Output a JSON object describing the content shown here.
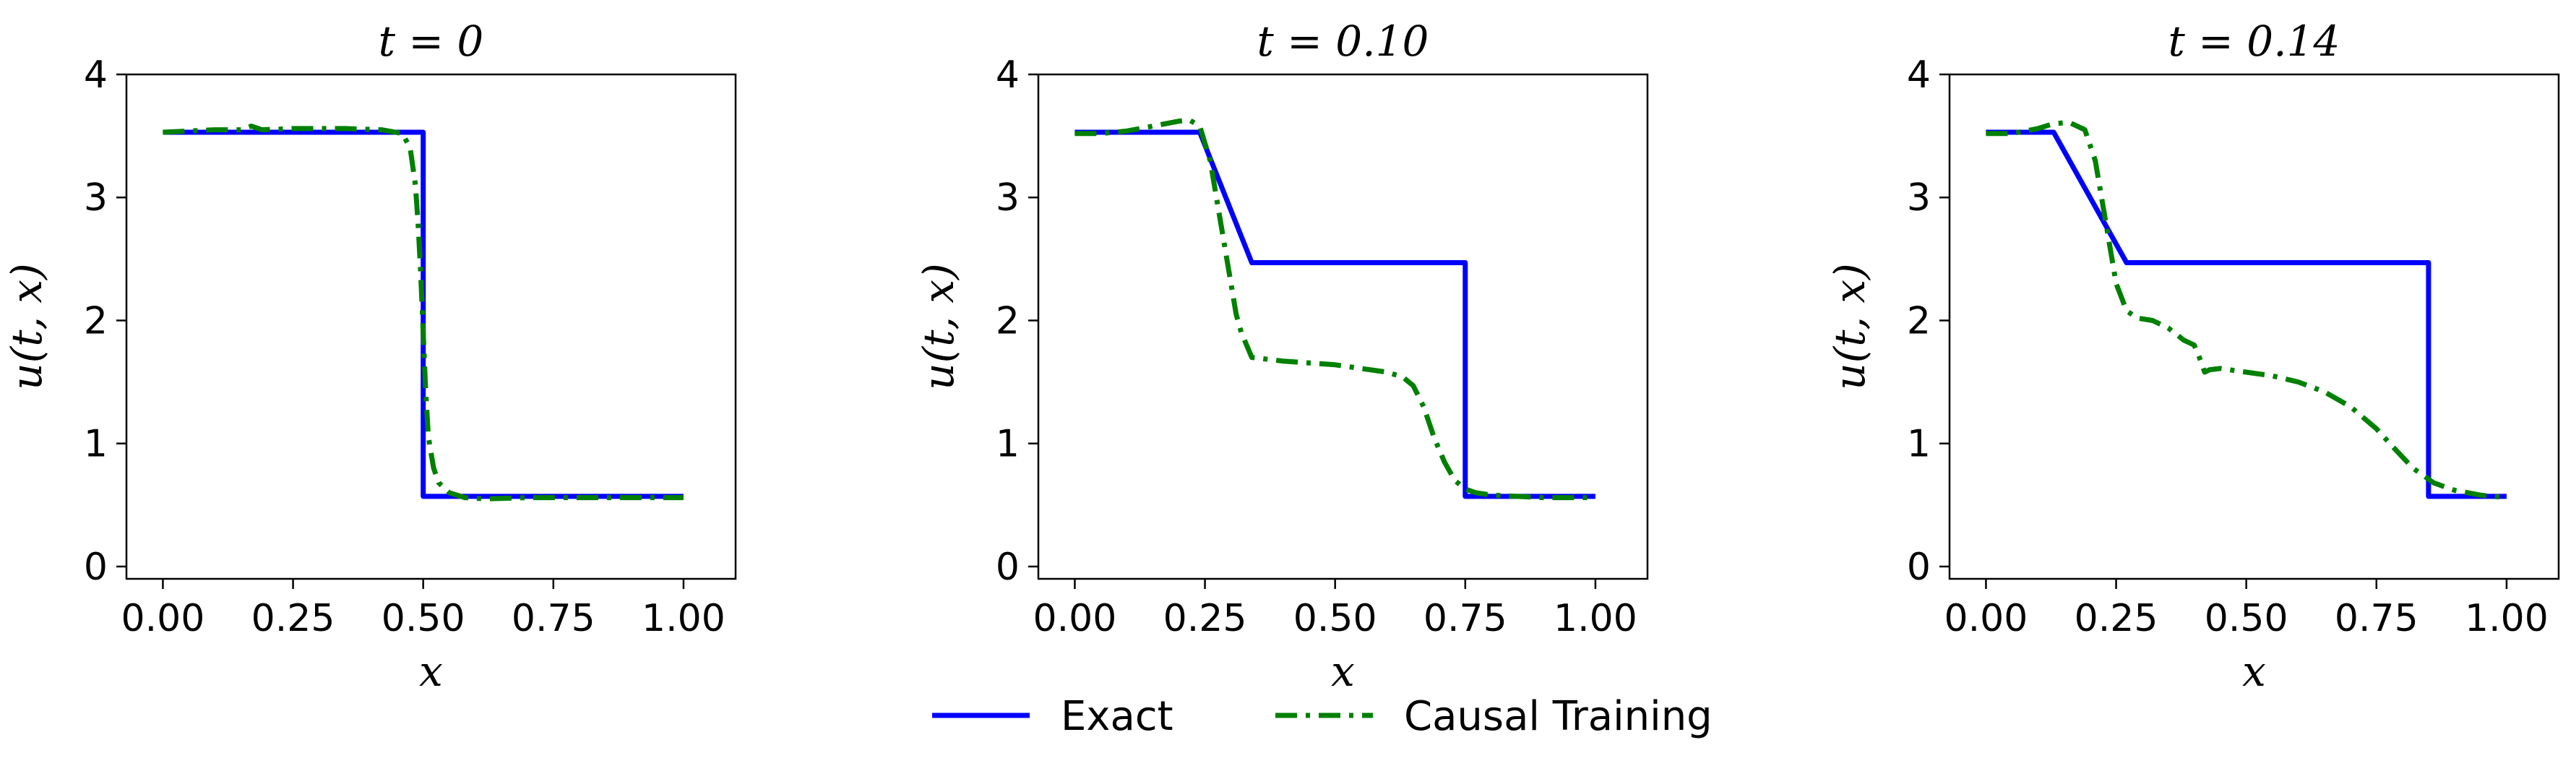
{
  "chart_data": [
    {
      "type": "line",
      "title": "t = 0",
      "xlabel": "x",
      "ylabel": "u(t, x)",
      "xlim": [
        -0.07,
        1.1
      ],
      "ylim": [
        -0.1,
        4.0
      ],
      "xticks": [
        0,
        0.25,
        0.5,
        0.75,
        1.0
      ],
      "xtick_labels": [
        "0.00",
        "0.25",
        "0.50",
        "0.75",
        "1.00"
      ],
      "yticks": [
        0,
        1,
        2,
        3,
        4
      ],
      "ytick_labels": [
        "0",
        "1",
        "2",
        "3",
        "4"
      ],
      "series": [
        {
          "name": "Exact",
          "color": "#0000ff",
          "style": "solid",
          "x": [
            0,
            0.5,
            0.5,
            1.0
          ],
          "y": [
            3.53,
            3.53,
            0.57,
            0.57
          ]
        },
        {
          "name": "Causal Training",
          "color": "#008000",
          "style": "dashdot",
          "x": [
            0,
            0.05,
            0.1,
            0.15,
            0.17,
            0.19,
            0.25,
            0.35,
            0.42,
            0.46,
            0.475,
            0.485,
            0.49,
            0.495,
            0.5,
            0.505,
            0.51,
            0.52,
            0.53,
            0.55,
            0.58,
            0.62,
            0.7,
            0.8,
            0.9,
            1.0
          ],
          "y": [
            3.53,
            3.54,
            3.55,
            3.55,
            3.58,
            3.55,
            3.56,
            3.56,
            3.55,
            3.52,
            3.4,
            3.1,
            2.8,
            2.4,
            1.9,
            1.4,
            1.05,
            0.8,
            0.68,
            0.6,
            0.56,
            0.55,
            0.56,
            0.56,
            0.56,
            0.56
          ]
        }
      ]
    },
    {
      "type": "line",
      "title": "t = 0.10",
      "xlabel": "x",
      "ylabel": "u(t, x)",
      "xlim": [
        -0.07,
        1.1
      ],
      "ylim": [
        -0.1,
        4.0
      ],
      "xticks": [
        0,
        0.25,
        0.5,
        0.75,
        1.0
      ],
      "xtick_labels": [
        "0.00",
        "0.25",
        "0.50",
        "0.75",
        "1.00"
      ],
      "yticks": [
        0,
        1,
        2,
        3,
        4
      ],
      "ytick_labels": [
        "0",
        "1",
        "2",
        "3",
        "4"
      ],
      "series": [
        {
          "name": "Exact",
          "color": "#0000ff",
          "style": "solid",
          "x": [
            0,
            0.24,
            0.34,
            0.75,
            0.75,
            1.0
          ],
          "y": [
            3.53,
            3.53,
            2.47,
            2.47,
            0.57,
            0.57
          ]
        },
        {
          "name": "Causal Training",
          "color": "#008000",
          "style": "dashdot",
          "x": [
            0,
            0.05,
            0.1,
            0.15,
            0.2,
            0.22,
            0.24,
            0.26,
            0.28,
            0.3,
            0.31,
            0.32,
            0.33,
            0.34,
            0.4,
            0.5,
            0.55,
            0.6,
            0.63,
            0.65,
            0.67,
            0.69,
            0.71,
            0.73,
            0.75,
            0.77,
            0.8,
            0.85,
            0.9,
            1.0
          ],
          "y": [
            3.52,
            3.52,
            3.54,
            3.58,
            3.62,
            3.63,
            3.58,
            3.3,
            2.8,
            2.3,
            2.05,
            1.9,
            1.8,
            1.7,
            1.67,
            1.64,
            1.61,
            1.58,
            1.54,
            1.47,
            1.3,
            1.05,
            0.85,
            0.7,
            0.63,
            0.6,
            0.58,
            0.57,
            0.56,
            0.56
          ]
        }
      ]
    },
    {
      "type": "line",
      "title": "t = 0.14",
      "xlabel": "x",
      "ylabel": "u(t, x)",
      "xlim": [
        -0.07,
        1.1
      ],
      "ylim": [
        -0.1,
        4.0
      ],
      "xticks": [
        0,
        0.25,
        0.5,
        0.75,
        1.0
      ],
      "xtick_labels": [
        "0.00",
        "0.25",
        "0.50",
        "0.75",
        "1.00"
      ],
      "yticks": [
        0,
        1,
        2,
        3,
        4
      ],
      "ytick_labels": [
        "0",
        "1",
        "2",
        "3",
        "4"
      ],
      "series": [
        {
          "name": "Exact",
          "color": "#0000ff",
          "style": "solid",
          "x": [
            0,
            0.13,
            0.27,
            0.85,
            0.85,
            1.0
          ],
          "y": [
            3.53,
            3.53,
            2.47,
            2.47,
            0.57,
            0.57
          ]
        },
        {
          "name": "Causal Training",
          "color": "#008000",
          "style": "dashdot",
          "x": [
            0,
            0.05,
            0.1,
            0.13,
            0.16,
            0.19,
            0.21,
            0.23,
            0.25,
            0.27,
            0.29,
            0.32,
            0.35,
            0.38,
            0.4,
            0.41,
            0.42,
            0.43,
            0.45,
            0.5,
            0.55,
            0.6,
            0.65,
            0.7,
            0.75,
            0.78,
            0.82,
            0.86,
            0.9,
            0.95,
            1.0
          ],
          "y": [
            3.52,
            3.52,
            3.56,
            3.6,
            3.61,
            3.55,
            3.3,
            2.8,
            2.3,
            2.08,
            2.02,
            2.0,
            1.94,
            1.84,
            1.8,
            1.7,
            1.58,
            1.6,
            1.61,
            1.58,
            1.55,
            1.5,
            1.42,
            1.3,
            1.12,
            0.98,
            0.8,
            0.68,
            0.62,
            0.58,
            0.56
          ]
        }
      ]
    }
  ],
  "legend": {
    "placement": "bottom-center",
    "entries": [
      {
        "label": "Exact",
        "color": "#0000ff",
        "style": "solid"
      },
      {
        "label": "Causal Training",
        "color": "#008000",
        "style": "dashdot"
      }
    ]
  }
}
